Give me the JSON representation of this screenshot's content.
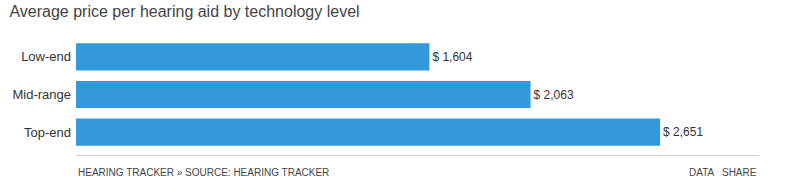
{
  "chart_data": {
    "type": "bar",
    "title": "Average price per hearing aid by technology level",
    "orientation": "horizontal",
    "categories": [
      "Top-end",
      "Mid-range",
      "Low-end"
    ],
    "values": [
      2651,
      2063,
      1604
    ],
    "value_labels": [
      "$ 2,651",
      "$ 2,063",
      "$ 1,604"
    ],
    "data_labels": true,
    "color": "#3399dd",
    "xlim": [
      0,
      3100
    ],
    "xticks": [],
    "tick_labels": "y",
    "grid": false,
    "annotations": [
      "HEARING TRACKER » SOURCE: HEARING TRACKER",
      "DATA   SHARE"
    ]
  }
}
